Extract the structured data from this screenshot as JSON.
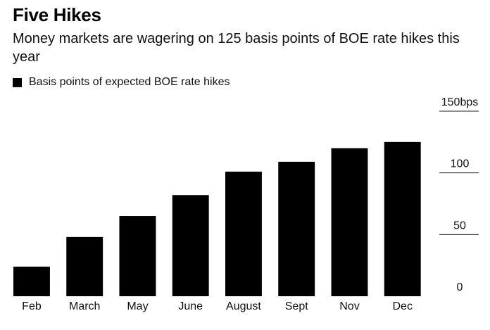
{
  "header": {
    "title": "Five Hikes",
    "subtitle": "Money markets are wagering on 125 basis points of BOE rate hikes this year"
  },
  "legend": {
    "label": "Basis points of expected BOE rate hikes",
    "color": "#000000"
  },
  "chart_data": {
    "type": "bar",
    "title": "Five Hikes",
    "subtitle": "Money markets are wagering on 125 basis points of BOE rate hikes this year",
    "categories": [
      "Feb",
      "March",
      "May",
      "June",
      "August",
      "Sept",
      "Nov",
      "Dec"
    ],
    "series": [
      {
        "name": "Basis points of expected BOE rate hikes",
        "values": [
          24,
          48,
          65,
          82,
          101,
          109,
          120,
          125
        ]
      }
    ],
    "ylim": [
      0,
      150
    ],
    "yticks": [
      0,
      50,
      100,
      150
    ],
    "ytick_labels": [
      "0",
      "50",
      "100",
      "150bps"
    ],
    "y_axis_side": "right",
    "grid": false,
    "legend_position": "top-left",
    "bar_color": "#000000"
  }
}
